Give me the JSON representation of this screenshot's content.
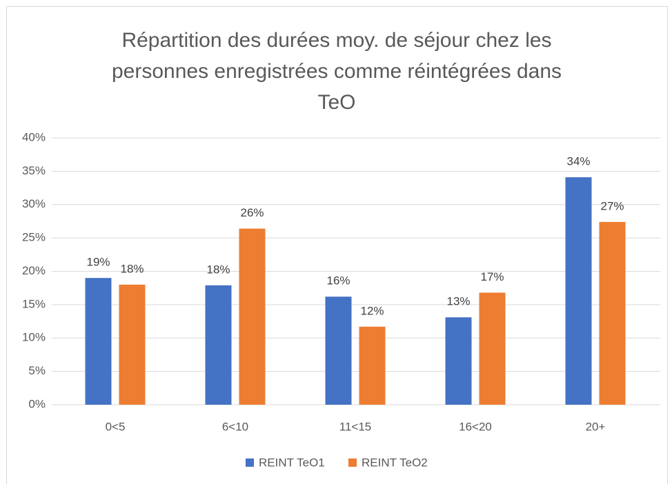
{
  "chart_data": {
    "type": "bar",
    "title": [
      "Répartition des durées moy. de séjour chez les",
      "personnes enregistrées comme réintégrées dans",
      "TeO"
    ],
    "categories": [
      "0<5",
      "6<10",
      "11<15",
      "16<20",
      "20+"
    ],
    "series": [
      {
        "name": "REINT TeO1",
        "color": "#4472c4",
        "values": [
          19.0,
          17.9,
          16.2,
          13.1,
          34.1
        ],
        "value_labels": [
          "19%",
          "18%",
          "16%",
          "13%",
          "34%"
        ]
      },
      {
        "name": "REINT TeO2",
        "color": "#ed7d31",
        "values": [
          18.0,
          26.4,
          11.7,
          16.8,
          27.4
        ],
        "value_labels": [
          "18%",
          "26%",
          "12%",
          "17%",
          "27%"
        ]
      }
    ],
    "ylim": [
      0,
      40
    ],
    "yticks": [
      {
        "value": 0,
        "label": "0%"
      },
      {
        "value": 5,
        "label": "5%"
      },
      {
        "value": 10,
        "label": "10%"
      },
      {
        "value": 15,
        "label": "15%"
      },
      {
        "value": 20,
        "label": "20%"
      },
      {
        "value": 25,
        "label": "25%"
      },
      {
        "value": 30,
        "label": "30%"
      },
      {
        "value": 35,
        "label": "35%"
      },
      {
        "value": 40,
        "label": "40%"
      }
    ],
    "grid": true,
    "legend": "bottom"
  }
}
